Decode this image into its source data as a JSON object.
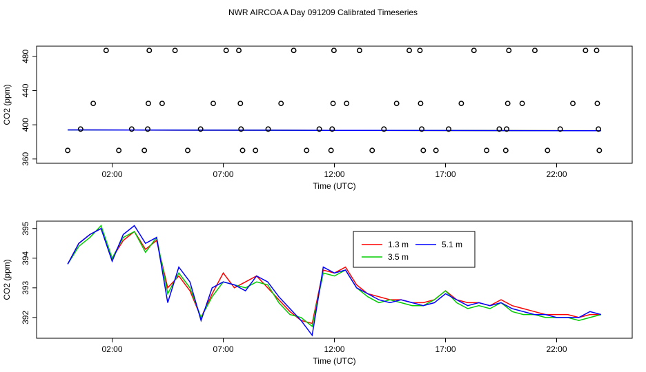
{
  "title": "NWR AIRCOA A  Day 091209  Calibrated Timeseries",
  "chart_data": [
    {
      "type": "scatter",
      "xlabel": "Time (UTC)",
      "ylabel": "CO2 (ppm)",
      "xlim": [
        -1.4,
        25.4
      ],
      "ylim": [
        355,
        492
      ],
      "xticks": [
        2,
        7,
        12,
        17,
        22
      ],
      "xticklabels": [
        "02:00",
        "07:00",
        "12:00",
        "17:00",
        "22:00"
      ],
      "yticks": [
        360,
        400,
        440,
        480
      ],
      "yticklabels": [
        "360",
        "400",
        "440",
        "480"
      ],
      "grid": false,
      "legend": "none",
      "points": [
        [
          0.0,
          370
        ],
        [
          0.58,
          395
        ],
        [
          1.15,
          425
        ],
        [
          1.73,
          487
        ],
        [
          2.3,
          370
        ],
        [
          2.88,
          395
        ],
        [
          3.45,
          370
        ],
        [
          3.6,
          395
        ],
        [
          3.63,
          425
        ],
        [
          3.67,
          487
        ],
        [
          4.25,
          425
        ],
        [
          4.83,
          487
        ],
        [
          5.4,
          370
        ],
        [
          5.98,
          395
        ],
        [
          6.55,
          425
        ],
        [
          7.13,
          487
        ],
        [
          7.7,
          487
        ],
        [
          7.77,
          425
        ],
        [
          7.8,
          395
        ],
        [
          7.87,
          370
        ],
        [
          8.45,
          370
        ],
        [
          9.02,
          395
        ],
        [
          9.6,
          425
        ],
        [
          10.17,
          487
        ],
        [
          10.75,
          370
        ],
        [
          11.32,
          395
        ],
        [
          11.85,
          370
        ],
        [
          11.9,
          395
        ],
        [
          11.94,
          425
        ],
        [
          11.98,
          487
        ],
        [
          12.55,
          425
        ],
        [
          13.13,
          487
        ],
        [
          13.7,
          370
        ],
        [
          14.23,
          395
        ],
        [
          14.8,
          425
        ],
        [
          15.37,
          487
        ],
        [
          15.85,
          487
        ],
        [
          15.88,
          425
        ],
        [
          15.93,
          395
        ],
        [
          16.0,
          370
        ],
        [
          16.57,
          370
        ],
        [
          17.14,
          395
        ],
        [
          17.71,
          425
        ],
        [
          18.28,
          487
        ],
        [
          18.85,
          370
        ],
        [
          19.42,
          395
        ],
        [
          19.71,
          370
        ],
        [
          19.75,
          395
        ],
        [
          19.8,
          425
        ],
        [
          19.85,
          487
        ],
        [
          20.45,
          425
        ],
        [
          21.02,
          487
        ],
        [
          21.59,
          370
        ],
        [
          22.16,
          395
        ],
        [
          22.73,
          425
        ],
        [
          23.3,
          487
        ],
        [
          23.8,
          487
        ],
        [
          23.83,
          425
        ],
        [
          23.88,
          395
        ],
        [
          23.92,
          370
        ]
      ],
      "series": [
        {
          "name": "1.3 m",
          "color": "#ff0000",
          "x": [
            0.0,
            12.0,
            24.0
          ],
          "values": [
            394,
            393.5,
            393
          ]
        },
        {
          "name": "3.5 m",
          "color": "#00cd00",
          "x": [
            0.0,
            12.0,
            24.0
          ],
          "values": [
            394,
            393.5,
            393
          ]
        },
        {
          "name": "5.1 m",
          "color": "#0000ff",
          "x": [
            0.0,
            12.0,
            24.0
          ],
          "values": [
            394,
            393.5,
            393
          ]
        }
      ]
    },
    {
      "type": "line",
      "xlabel": "Time (UTC)",
      "ylabel": "CO2 (ppm)",
      "xlim": [
        -1.4,
        25.4
      ],
      "ylim": [
        391.3,
        395.25
      ],
      "xticks": [
        2,
        7,
        12,
        17,
        22
      ],
      "xticklabels": [
        "02:00",
        "07:00",
        "12:00",
        "17:00",
        "22:00"
      ],
      "yticks": [
        392,
        393,
        394,
        395
      ],
      "yticklabels": [
        "392",
        "393",
        "394",
        "395"
      ],
      "grid": false,
      "legend": "top-right",
      "legend_entries": [
        "1.3 m",
        "5.1 m",
        "3.5 m"
      ],
      "x": [
        0.0,
        0.5,
        1.0,
        1.5,
        2.0,
        2.5,
        3.0,
        3.5,
        4.0,
        4.5,
        5.0,
        5.5,
        6.0,
        6.5,
        7.0,
        7.5,
        8.0,
        8.5,
        9.0,
        9.5,
        10.0,
        10.5,
        11.0,
        11.5,
        12.0,
        12.5,
        13.0,
        13.5,
        14.0,
        14.5,
        15.0,
        15.5,
        16.0,
        16.5,
        17.0,
        17.5,
        18.0,
        18.5,
        19.0,
        19.5,
        20.0,
        20.5,
        21.0,
        21.5,
        22.0,
        22.5,
        23.0,
        23.5,
        24.0
      ],
      "series": [
        {
          "name": "1.3 m",
          "color": "#ff0000",
          "values": [
            393.8,
            394.5,
            394.8,
            395.0,
            394.0,
            394.6,
            394.9,
            394.3,
            394.6,
            393.0,
            393.4,
            392.9,
            392.0,
            392.8,
            393.5,
            393.0,
            393.2,
            393.4,
            393.0,
            392.6,
            392.2,
            391.9,
            391.8,
            393.6,
            393.5,
            393.7,
            393.1,
            392.8,
            392.7,
            392.6,
            392.6,
            392.5,
            392.5,
            392.6,
            392.9,
            392.6,
            392.5,
            392.5,
            392.4,
            392.6,
            392.4,
            392.3,
            392.2,
            392.1,
            392.1,
            392.1,
            392.0,
            392.1,
            392.1
          ]
        },
        {
          "name": "3.5 m",
          "color": "#00cd00",
          "values": [
            393.8,
            394.4,
            394.7,
            395.1,
            394.0,
            394.7,
            394.9,
            394.2,
            394.7,
            392.8,
            393.5,
            393.0,
            392.0,
            392.7,
            393.2,
            393.1,
            393.0,
            393.2,
            393.1,
            392.5,
            392.1,
            392.0,
            391.7,
            393.5,
            393.4,
            393.6,
            393.0,
            392.7,
            392.5,
            392.6,
            392.5,
            392.4,
            392.4,
            392.6,
            392.9,
            392.5,
            392.3,
            392.4,
            392.3,
            392.5,
            392.2,
            392.1,
            392.1,
            392.0,
            392.0,
            392.0,
            391.9,
            392.0,
            392.1
          ]
        },
        {
          "name": "5.1 m",
          "color": "#0000ff",
          "values": [
            393.8,
            394.5,
            394.8,
            395.0,
            393.9,
            394.8,
            395.1,
            394.5,
            394.7,
            392.5,
            393.7,
            393.2,
            391.9,
            393.0,
            393.2,
            393.1,
            392.9,
            393.4,
            393.2,
            392.7,
            392.3,
            391.9,
            391.4,
            393.7,
            393.5,
            393.6,
            393.0,
            392.8,
            392.6,
            392.5,
            392.6,
            392.5,
            392.4,
            392.5,
            392.8,
            392.6,
            392.4,
            392.5,
            392.4,
            392.5,
            392.3,
            392.2,
            392.1,
            392.1,
            392.0,
            392.0,
            392.0,
            392.2,
            392.1
          ]
        }
      ]
    }
  ]
}
